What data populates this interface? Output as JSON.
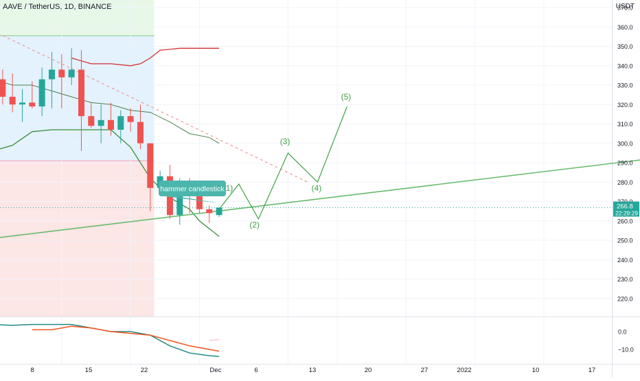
{
  "header": {
    "symbol": "AAVE / TetherUS, 1D, BINANCE",
    "currency": "USDT"
  },
  "colors": {
    "bull": "#26a69a",
    "bear": "#ef5350",
    "wave": "#43a047",
    "trend": "#66bb6a",
    "upper_band": "#d32f2f",
    "lower_band": "#388e3c",
    "dashed_trend": "#ef9a9a",
    "price_tag": "#26a69a",
    "callout": "#4db6ac"
  },
  "price_axis": {
    "labels": [
      "370.0",
      "360.0",
      "350.0",
      "340.0",
      "330.0",
      "320.0",
      "310.0",
      "300.0",
      "290.0",
      "280.0",
      "270.0",
      "260.0",
      "250.0",
      "240.0",
      "230.0",
      "220.0"
    ],
    "last_price": "266.8",
    "countdown": "22:29:29"
  },
  "indicator_axis": {
    "labels": [
      "0.0",
      "−10.0"
    ]
  },
  "time_axis": {
    "labels": [
      "8",
      "15",
      "22",
      "Dec",
      "6",
      "13",
      "20",
      "27",
      "2022",
      "10",
      "17"
    ]
  },
  "annotations": {
    "callout": "hammer candlestick",
    "waves": [
      "(1)",
      "(2)",
      "(3)",
      "(4)",
      "(5)"
    ]
  },
  "chart_data": {
    "type": "candlestick",
    "title": "AAVE / TetherUS, 1D, BINANCE",
    "y_unit": "USDT",
    "ylim": [
      214,
      374
    ],
    "x_unit": "day",
    "note_days": "day 0 = Nov 1 2021",
    "candles": [
      {
        "day": 1,
        "o": 333,
        "h": 338,
        "l": 320,
        "c": 324
      },
      {
        "day": 2,
        "o": 324,
        "h": 336,
        "l": 316,
        "c": 320
      },
      {
        "day": 3,
        "o": 320,
        "h": 328,
        "l": 311,
        "c": 321
      },
      {
        "day": 4,
        "o": 321,
        "h": 332,
        "l": 318,
        "c": 319
      },
      {
        "day": 5,
        "o": 319,
        "h": 339,
        "l": 314,
        "c": 333
      },
      {
        "day": 6,
        "o": 333,
        "h": 347,
        "l": 318,
        "c": 338
      },
      {
        "day": 7,
        "o": 338,
        "h": 346,
        "l": 318,
        "c": 334
      },
      {
        "day": 8,
        "o": 334,
        "h": 349,
        "l": 330,
        "c": 338
      },
      {
        "day": 9,
        "o": 338,
        "h": 348,
        "l": 296,
        "c": 314
      },
      {
        "day": 10,
        "o": 314,
        "h": 321,
        "l": 308,
        "c": 309
      },
      {
        "day": 11,
        "o": 309,
        "h": 320,
        "l": 300,
        "c": 312
      },
      {
        "day": 12,
        "o": 312,
        "h": 321,
        "l": 304,
        "c": 307
      },
      {
        "day": 13,
        "o": 307,
        "h": 317,
        "l": 300,
        "c": 314
      },
      {
        "day": 14,
        "o": 314,
        "h": 318,
        "l": 306,
        "c": 311
      },
      {
        "day": 15,
        "o": 311,
        "h": 320,
        "l": 297,
        "c": 300
      },
      {
        "day": 16,
        "o": 300,
        "h": 300,
        "l": 265,
        "c": 277
      },
      {
        "day": 17,
        "o": 277,
        "h": 286,
        "l": 274,
        "c": 283
      },
      {
        "day": 18,
        "o": 283,
        "h": 289,
        "l": 261,
        "c": 263
      },
      {
        "day": 19,
        "o": 263,
        "h": 282,
        "l": 258,
        "c": 279
      },
      {
        "day": 20,
        "o": 279,
        "h": 282,
        "l": 264,
        "c": 274
      },
      {
        "day": 21,
        "o": 273,
        "h": 274,
        "l": 264,
        "c": 266
      },
      {
        "day": 22,
        "o": 266,
        "h": 268,
        "l": 259,
        "c": 264
      },
      {
        "day": 23,
        "o": 263,
        "h": 267,
        "l": 262,
        "c": 266.8
      }
    ],
    "bands": {
      "upper": [
        [
          8,
          344
        ],
        [
          10,
          341
        ],
        [
          12,
          341
        ],
        [
          14,
          340
        ],
        [
          15,
          341
        ],
        [
          16,
          344
        ],
        [
          17,
          348
        ],
        [
          19,
          349
        ],
        [
          21,
          349
        ],
        [
          23,
          349
        ]
      ],
      "middle": [
        [
          0,
          333
        ],
        [
          2,
          330
        ],
        [
          4,
          330
        ],
        [
          6,
          327
        ],
        [
          8,
          324
        ],
        [
          10,
          321
        ],
        [
          12,
          320
        ],
        [
          14,
          317
        ],
        [
          16,
          316
        ],
        [
          18,
          311
        ],
        [
          20,
          305
        ],
        [
          22,
          303
        ],
        [
          23,
          300
        ]
      ],
      "lower": [
        [
          0,
          296
        ],
        [
          2,
          299
        ],
        [
          4,
          306
        ],
        [
          6,
          307
        ],
        [
          8,
          307
        ],
        [
          10,
          307
        ],
        [
          12,
          307
        ],
        [
          14,
          298
        ],
        [
          16,
          282
        ],
        [
          18,
          272
        ],
        [
          20,
          266
        ],
        [
          21,
          260
        ],
        [
          22,
          256
        ],
        [
          23,
          252
        ]
      ]
    },
    "trendline": {
      "start": [
        0,
        251
      ],
      "end": [
        70,
        294
      ]
    },
    "dashed_trendline": {
      "start": [
        0,
        358
      ],
      "end": [
        32,
        280
      ]
    },
    "wave_projection": [
      [
        23,
        266
      ],
      [
        25,
        279
      ],
      [
        27,
        261
      ],
      [
        30,
        295
      ],
      [
        33,
        280
      ],
      [
        36,
        319
      ]
    ],
    "indicator": {
      "ylim": [
        -14,
        8
      ],
      "macd": [
        [
          0,
          4
        ],
        [
          2,
          3.5
        ],
        [
          4,
          4
        ],
        [
          6,
          4
        ],
        [
          8,
          4
        ],
        [
          10,
          2
        ],
        [
          12,
          0
        ],
        [
          14,
          0
        ],
        [
          16,
          -2
        ],
        [
          18,
          -8
        ],
        [
          20,
          -12
        ],
        [
          22,
          -13.5
        ],
        [
          23,
          -14
        ]
      ],
      "signal": [
        [
          4,
          1
        ],
        [
          6,
          1
        ],
        [
          8,
          3
        ],
        [
          10,
          2
        ],
        [
          12,
          0
        ],
        [
          14,
          -1
        ],
        [
          16,
          -2
        ],
        [
          18,
          -5
        ],
        [
          20,
          -8
        ],
        [
          22,
          -10
        ],
        [
          23,
          -11
        ]
      ],
      "hist_ghost": [
        [
          22,
          -5
        ],
        [
          23,
          -4.5
        ]
      ]
    }
  }
}
